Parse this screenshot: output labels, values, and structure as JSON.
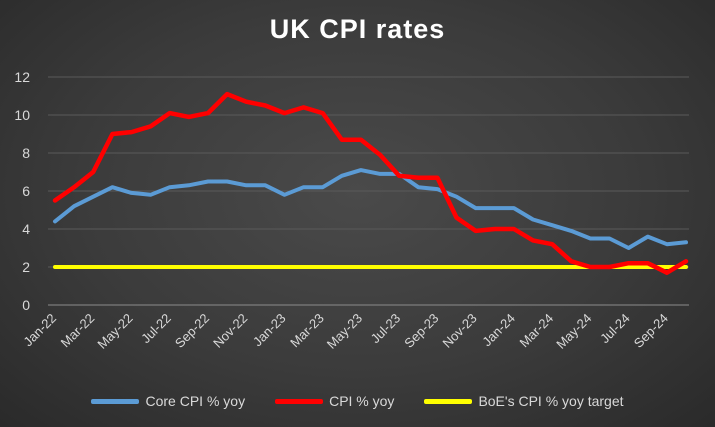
{
  "chart_data": {
    "type": "line",
    "title": "UK CPI rates",
    "xlabel": "",
    "ylabel": "",
    "ylim": [
      0,
      12
    ],
    "y_ticks": [
      0,
      2,
      4,
      6,
      8,
      10,
      12
    ],
    "grid": true,
    "legend_position": "bottom",
    "x": [
      "Jan-22",
      "Feb-22",
      "Mar-22",
      "Apr-22",
      "May-22",
      "Jun-22",
      "Jul-22",
      "Aug-22",
      "Sep-22",
      "Oct-22",
      "Nov-22",
      "Dec-22",
      "Jan-23",
      "Feb-23",
      "Mar-23",
      "Apr-23",
      "May-23",
      "Jun-23",
      "Jul-23",
      "Aug-23",
      "Sep-23",
      "Oct-23",
      "Nov-23",
      "Dec-23",
      "Jan-24",
      "Feb-24",
      "Mar-24",
      "Apr-24",
      "May-24",
      "Jun-24",
      "Jul-24",
      "Aug-24",
      "Sep-24",
      "Oct-24"
    ],
    "x_tick_labels": [
      "Jan-22",
      "Mar-22",
      "May-22",
      "Jul-22",
      "Sep-22",
      "Nov-22",
      "Jan-23",
      "Mar-23",
      "May-23",
      "Jul-23",
      "Sep-23",
      "Nov-23",
      "Jan-24",
      "Mar-24",
      "May-24",
      "Jul-24",
      "Sep-24"
    ],
    "series": [
      {
        "name": "Core CPI % yoy",
        "color": "#5b9bd5",
        "values": [
          4.4,
          5.2,
          5.7,
          6.2,
          5.9,
          5.8,
          6.2,
          6.3,
          6.5,
          6.5,
          6.3,
          6.3,
          5.8,
          6.2,
          6.2,
          6.8,
          7.1,
          6.9,
          6.9,
          6.2,
          6.1,
          5.7,
          5.1,
          5.1,
          5.1,
          4.5,
          4.2,
          3.9,
          3.5,
          3.5,
          3.0,
          3.6,
          3.2,
          3.3
        ]
      },
      {
        "name": "CPI % yoy",
        "color": "#ff0000",
        "values": [
          5.5,
          6.2,
          7.0,
          9.0,
          9.1,
          9.4,
          10.1,
          9.9,
          10.1,
          11.1,
          10.7,
          10.5,
          10.1,
          10.4,
          10.1,
          8.7,
          8.7,
          7.9,
          6.8,
          6.7,
          6.7,
          4.6,
          3.9,
          4.0,
          4.0,
          3.4,
          3.2,
          2.3,
          2.0,
          2.0,
          2.2,
          2.2,
          1.7,
          2.3
        ]
      },
      {
        "name": "BoE's CPI % yoy target",
        "color": "#ffff00",
        "values": [
          2,
          2,
          2,
          2,
          2,
          2,
          2,
          2,
          2,
          2,
          2,
          2,
          2,
          2,
          2,
          2,
          2,
          2,
          2,
          2,
          2,
          2,
          2,
          2,
          2,
          2,
          2,
          2,
          2,
          2,
          2,
          2,
          2,
          2
        ]
      }
    ]
  }
}
